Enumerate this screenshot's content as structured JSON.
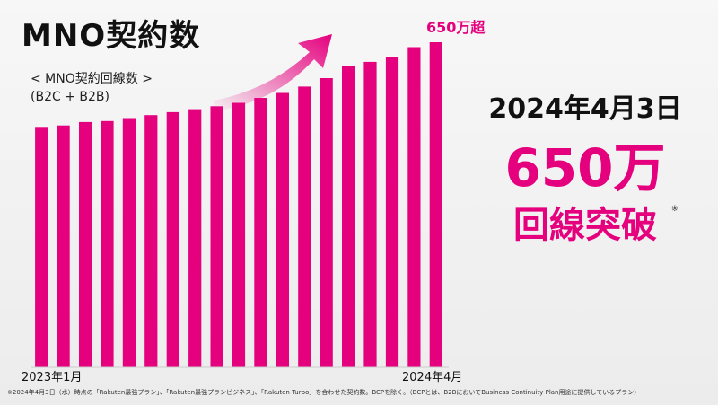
{
  "slide": {
    "title": "MNO契約数",
    "subtitle_line1": "< MNO契約回線数 >",
    "subtitle_line2": "(B2C + B2B)",
    "date": "2024年4月3日",
    "big_number": "650万",
    "big_caption": "回線突破",
    "caption_mark": "※",
    "footnote": "※2024年4月3日（水）時点の「Rakuten最強プラン」、「Rakuten最強プランビジネス」、「Rakuten Turbo」を合わせた契約数。BCPを除く。（BCPとは、B2BにおいてBusiness Continuity Plan用途に提供しているプラン）"
  },
  "chart_data": {
    "type": "bar",
    "title": "MNO契約数",
    "categories": [
      "2023年1月",
      "",
      "",
      "",
      "",
      "",
      "",
      "",
      "",
      "",
      "",
      "",
      "",
      "",
      "",
      "",
      "",
      "",
      "2024年4月"
    ],
    "values": [
      4.88,
      4.91,
      4.98,
      5.0,
      5.06,
      5.12,
      5.18,
      5.24,
      5.3,
      5.37,
      5.47,
      5.57,
      5.7,
      5.87,
      6.12,
      6.2,
      6.3,
      6.5,
      6.6
    ],
    "unit": "百万回線",
    "ylim": [
      0,
      6.6
    ],
    "peak_label": "650万超",
    "x_tick_labels": [
      "2023年1月",
      "2024年4月"
    ],
    "bar_color": "#e5007e",
    "arrow_color": "#e5007e",
    "grid": false
  }
}
